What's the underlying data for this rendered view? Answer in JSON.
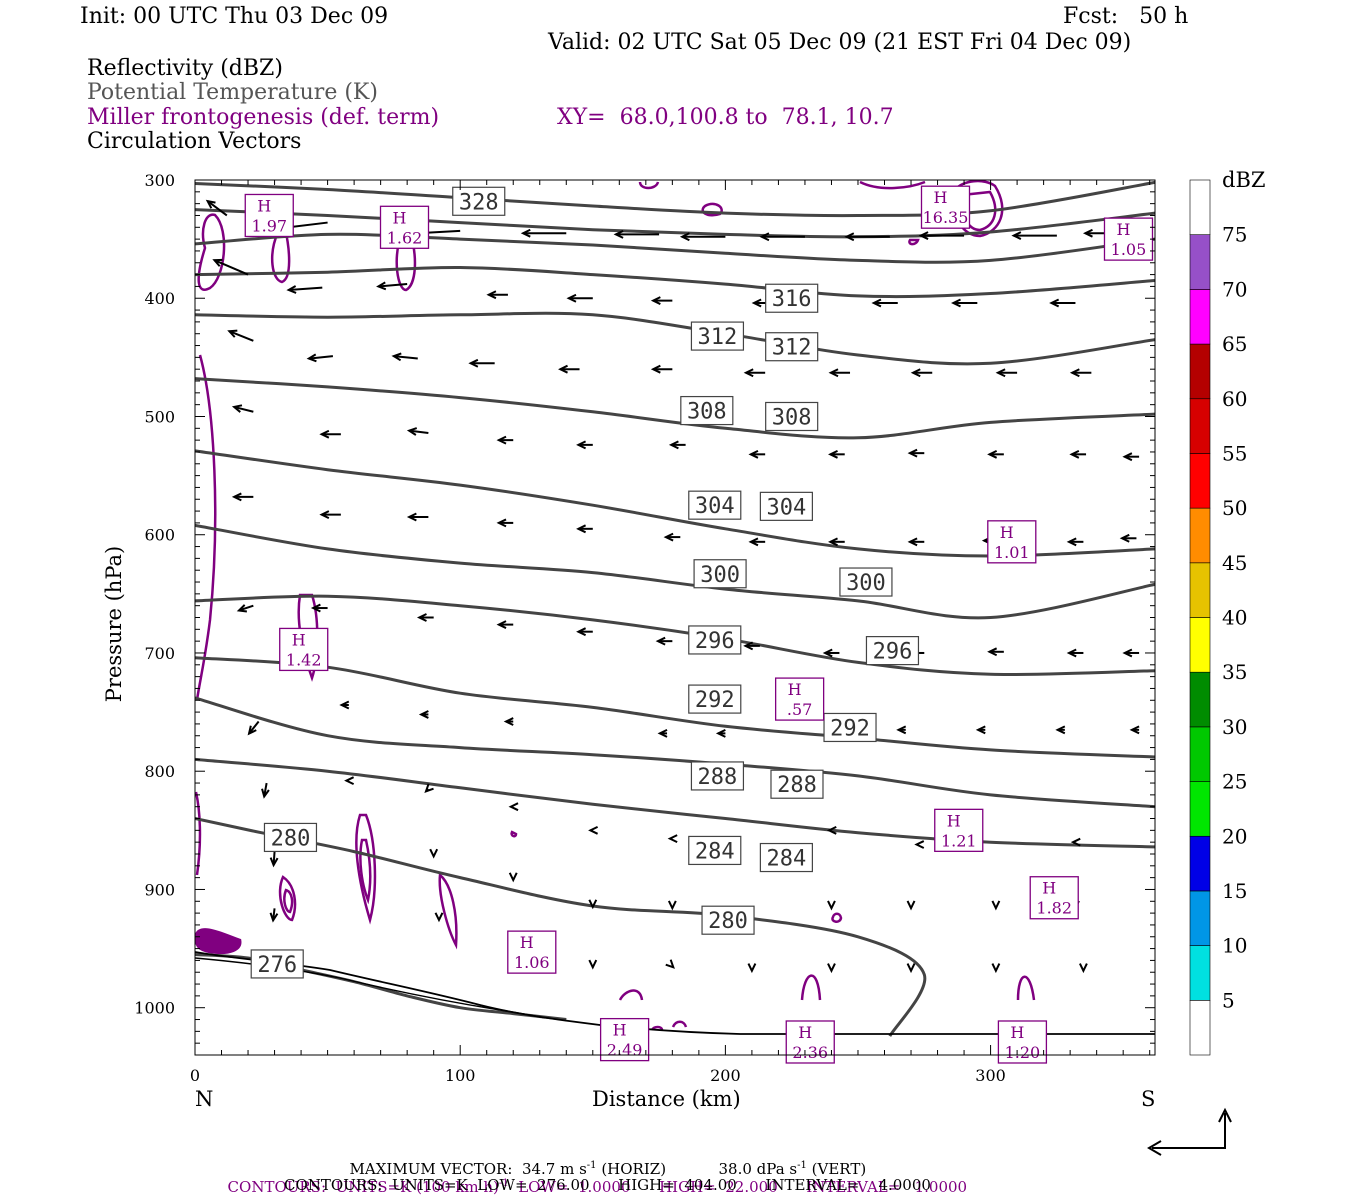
{
  "header": {
    "init": "Init: 00 UTC Thu 03 Dec 09",
    "fcst": "Fcst:   50 h",
    "valid": "Valid: 02 UTC Sat 05 Dec 09 (21 EST Fri 04 Dec 09)",
    "legend_reflectivity": "Reflectivity (dBZ)",
    "legend_theta": "Potential Temperature (K)",
    "legend_frontogenesis": "Miller frontogenesis (def. term)",
    "xy_range": "XY=  68.0,100.8 to  78.1, 10.7",
    "legend_vectors": "Circulation Vectors"
  },
  "colors": {
    "theta": "#444444",
    "frontogenesis": "#800080",
    "vectors": "#000000"
  },
  "colorbar": {
    "title": "dBZ",
    "levels": [
      "5",
      "10",
      "15",
      "20",
      "25",
      "30",
      "35",
      "40",
      "45",
      "50",
      "55",
      "60",
      "65",
      "70",
      "75"
    ],
    "colors": [
      "#ffffff",
      "#00e0e0",
      "#0096e6",
      "#0000e6",
      "#00e600",
      "#00c800",
      "#008c00",
      "#ffff00",
      "#e6c300",
      "#ff8c00",
      "#ff0000",
      "#d70000",
      "#b40000",
      "#ff00ff",
      "#9650c8",
      "#ffffff"
    ]
  },
  "footer": {
    "max_vector_label": "MAXIMUM VECTOR:",
    "max_vector_horiz": "34.7 m s",
    "horiz_tag": "(HORIZ)",
    "max_vector_vert": "38.0 dPa s",
    "vert_tag": "(VERT)",
    "contours_purple": "CONTOURS:  UNITS=K (100 km h)",
    "purple_stats": "LOW=  1.0000      HIGH=  22.000      INTERVAL=   1.0000",
    "contours_black": "CONTOURS:  UNITS=K  LOW=  276.00      HIGH=  404.00      INTERVAL=    4.0000",
    "exp_minus1": "-1"
  },
  "chart_data": {
    "type": "line",
    "xlabel": "Distance (km)",
    "ylabel": "Pressure (hPa)",
    "xlim": [
      0,
      362
    ],
    "ylim": [
      1040,
      300
    ],
    "x_ticks": [
      "0",
      "100",
      "200",
      "300"
    ],
    "x_tick_values": [
      0,
      100,
      200,
      300
    ],
    "y_ticks": [
      "300",
      "400",
      "500",
      "600",
      "700",
      "800",
      "900",
      "1000"
    ],
    "y_tick_values": [
      300,
      400,
      500,
      600,
      700,
      800,
      900,
      1000
    ],
    "left_end_label": "N",
    "right_end_label": "S",
    "theta_contours": [
      {
        "value": 328,
        "label": "328",
        "x": [
          0,
          50,
          100,
          150,
          200,
          250,
          300,
          362
        ],
        "p": [
          303,
          308,
          315,
          322,
          328,
          330,
          326,
          302
        ]
      },
      {
        "value": 324,
        "label": "",
        "x": [
          0,
          50,
          100,
          150,
          200,
          250,
          300,
          362
        ],
        "p": [
          325,
          330,
          336,
          342,
          346,
          348,
          344,
          328
        ]
      },
      {
        "value": 320,
        "label": "",
        "x": [
          0,
          50,
          100,
          150,
          200,
          250,
          300,
          362
        ],
        "p": [
          354,
          346,
          350,
          355,
          362,
          368,
          368,
          350
        ]
      },
      {
        "value": 316,
        "label": "316",
        "x": [
          0,
          50,
          100,
          150,
          200,
          250,
          300,
          362
        ],
        "p": [
          380,
          378,
          374,
          380,
          388,
          398,
          396,
          385
        ]
      },
      {
        "value": 312,
        "label": "312",
        "x": [
          0,
          50,
          100,
          150,
          200,
          250,
          300,
          362
        ],
        "p": [
          414,
          416,
          414,
          414,
          430,
          448,
          455,
          435
        ]
      },
      {
        "value": 308,
        "label": "308",
        "x": [
          0,
          50,
          100,
          150,
          200,
          250,
          300,
          362
        ],
        "p": [
          468,
          475,
          484,
          496,
          510,
          518,
          505,
          498
        ]
      },
      {
        "value": 304,
        "label": "304",
        "x": [
          0,
          50,
          100,
          150,
          200,
          250,
          300,
          362
        ],
        "p": [
          529,
          545,
          558,
          575,
          595,
          612,
          618,
          612
        ]
      },
      {
        "value": 300,
        "label": "300",
        "x": [
          0,
          50,
          100,
          150,
          200,
          250,
          300,
          362
        ],
        "p": [
          592,
          612,
          624,
          632,
          646,
          656,
          670,
          642
        ]
      },
      {
        "value": 296,
        "label": "296",
        "x": [
          0,
          50,
          100,
          150,
          200,
          250,
          300,
          362
        ],
        "p": [
          656,
          652,
          660,
          672,
          688,
          708,
          718,
          715
        ]
      },
      {
        "value": 292,
        "label": "292",
        "x": [
          0,
          50,
          100,
          150,
          200,
          250,
          300,
          362
        ],
        "p": [
          704,
          712,
          734,
          746,
          762,
          772,
          782,
          788
        ]
      },
      {
        "value": 288,
        "label": "288",
        "x": [
          0,
          50,
          100,
          150,
          200,
          250,
          300,
          362
        ],
        "p": [
          738,
          770,
          780,
          786,
          794,
          804,
          820,
          830
        ]
      },
      {
        "value": 284,
        "label": "284",
        "x": [
          0,
          50,
          100,
          150,
          200,
          250,
          300,
          362
        ],
        "p": [
          790,
          800,
          814,
          828,
          840,
          852,
          860,
          864
        ]
      },
      {
        "value": 280,
        "label": "280",
        "x": [
          0,
          25,
          60,
          100,
          150,
          200,
          250,
          275,
          262
        ],
        "p": [
          840,
          852,
          868,
          890,
          914,
          922,
          940,
          972,
          1024
        ]
      },
      {
        "value": 276,
        "label": "276",
        "x": [
          0,
          20,
          40,
          60,
          80,
          100,
          120,
          140
        ],
        "p": [
          955,
          958,
          968,
          978,
          990,
          1000,
          1005,
          1010
        ]
      }
    ],
    "theta_labels": [
      {
        "text": "328",
        "x": 107,
        "p": 318
      },
      {
        "text": "316",
        "x": 225,
        "p": 400
      },
      {
        "text": "312",
        "x": 197,
        "p": 432
      },
      {
        "text": "312",
        "x": 225,
        "p": 441
      },
      {
        "text": "308",
        "x": 193,
        "p": 495
      },
      {
        "text": "308",
        "x": 225,
        "p": 500
      },
      {
        "text": "304",
        "x": 196,
        "p": 575
      },
      {
        "text": "304",
        "x": 223,
        "p": 576
      },
      {
        "text": "300",
        "x": 198,
        "p": 633
      },
      {
        "text": "300",
        "x": 253,
        "p": 640
      },
      {
        "text": "296",
        "x": 196,
        "p": 689
      },
      {
        "text": "296",
        "x": 263,
        "p": 698
      },
      {
        "text": "292",
        "x": 196,
        "p": 739
      },
      {
        "text": "292",
        "x": 247,
        "p": 763
      },
      {
        "text": "288",
        "x": 197,
        "p": 804
      },
      {
        "text": "288",
        "x": 227,
        "p": 811
      },
      {
        "text": "284",
        "x": 196,
        "p": 867
      },
      {
        "text": "284",
        "x": 223,
        "p": 873
      },
      {
        "text": "280",
        "x": 36,
        "p": 856
      },
      {
        "text": "280",
        "x": 201,
        "p": 926
      },
      {
        "text": "276",
        "x": 31,
        "p": 963
      }
    ],
    "h_markers": [
      {
        "value": "1.97",
        "x": 28,
        "p": 330
      },
      {
        "value": "1.62",
        "x": 79,
        "p": 340
      },
      {
        "value": "16.35",
        "x": 283,
        "p": 323
      },
      {
        "value": "1.05",
        "x": 352,
        "p": 350
      },
      {
        "value": "1.01",
        "x": 308,
        "p": 606
      },
      {
        "value": "1.42",
        "x": 41,
        "p": 697
      },
      {
        "value": ".57",
        "x": 228,
        "p": 739
      },
      {
        "value": "1.21",
        "x": 288,
        "p": 850
      },
      {
        "value": "1.82",
        "x": 324,
        "p": 907
      },
      {
        "value": "1.06",
        "x": 127,
        "p": 953
      },
      {
        "value": "2.49",
        "x": 162,
        "p": 1027
      },
      {
        "value": "2.36",
        "x": 232,
        "p": 1029
      },
      {
        "value": "1.20",
        "x": 312,
        "p": 1029
      }
    ],
    "circulation_vectors": [
      {
        "x": 12,
        "p": 330,
        "dx": -0.4,
        "dp": -0.3
      },
      {
        "x": 50,
        "p": 336,
        "dx": -1.0,
        "dp": 0.12
      },
      {
        "x": 100,
        "p": 343,
        "dx": -0.9,
        "dp": 0.05
      },
      {
        "x": 140,
        "p": 345,
        "dx": -0.9,
        "dp": 0.0
      },
      {
        "x": 175,
        "p": 346,
        "dx": -0.9,
        "dp": 0.0
      },
      {
        "x": 200,
        "p": 348,
        "dx": -0.9,
        "dp": 0.0
      },
      {
        "x": 230,
        "p": 348,
        "dx": -0.9,
        "dp": 0.0
      },
      {
        "x": 262,
        "p": 348,
        "dx": -0.9,
        "dp": 0.0
      },
      {
        "x": 290,
        "p": 347,
        "dx": -0.9,
        "dp": 0.0
      },
      {
        "x": 325,
        "p": 347,
        "dx": -0.9,
        "dp": 0.0
      },
      {
        "x": 352,
        "p": 345,
        "dx": -0.9,
        "dp": 0.0
      },
      {
        "x": 20,
        "p": 380,
        "dx": -0.7,
        "dp": -0.3
      },
      {
        "x": 48,
        "p": 391,
        "dx": -0.7,
        "dp": 0.05
      },
      {
        "x": 80,
        "p": 388,
        "dx": -0.6,
        "dp": 0.05
      },
      {
        "x": 118,
        "p": 397,
        "dx": -0.4,
        "dp": 0.0
      },
      {
        "x": 150,
        "p": 400,
        "dx": -0.5,
        "dp": 0.0
      },
      {
        "x": 180,
        "p": 402,
        "dx": -0.4,
        "dp": 0.0
      },
      {
        "x": 218,
        "p": 404,
        "dx": -0.4,
        "dp": 0.0
      },
      {
        "x": 265,
        "p": 404,
        "dx": -0.5,
        "dp": 0.0
      },
      {
        "x": 295,
        "p": 404,
        "dx": -0.5,
        "dp": 0.0
      },
      {
        "x": 332,
        "p": 404,
        "dx": -0.5,
        "dp": 0.0
      },
      {
        "x": 22,
        "p": 436,
        "dx": -0.5,
        "dp": -0.2
      },
      {
        "x": 52,
        "p": 449,
        "dx": -0.5,
        "dp": 0.05
      },
      {
        "x": 84,
        "p": 451,
        "dx": -0.5,
        "dp": -0.05
      },
      {
        "x": 113,
        "p": 455,
        "dx": -0.5,
        "dp": 0.0
      },
      {
        "x": 145,
        "p": 460,
        "dx": -0.4,
        "dp": 0.0
      },
      {
        "x": 180,
        "p": 460,
        "dx": -0.4,
        "dp": 0.0
      },
      {
        "x": 215,
        "p": 463,
        "dx": -0.4,
        "dp": 0.0
      },
      {
        "x": 247,
        "p": 463,
        "dx": -0.4,
        "dp": 0.0
      },
      {
        "x": 278,
        "p": 463,
        "dx": -0.4,
        "dp": 0.0
      },
      {
        "x": 310,
        "p": 463,
        "dx": -0.4,
        "dp": 0.0
      },
      {
        "x": 338,
        "p": 463,
        "dx": -0.4,
        "dp": 0.0
      },
      {
        "x": 22,
        "p": 496,
        "dx": -0.4,
        "dp": -0.1
      },
      {
        "x": 55,
        "p": 515,
        "dx": -0.4,
        "dp": 0.0
      },
      {
        "x": 88,
        "p": 514,
        "dx": -0.4,
        "dp": -0.05
      },
      {
        "x": 120,
        "p": 520,
        "dx": -0.3,
        "dp": 0.0
      },
      {
        "x": 150,
        "p": 524,
        "dx": -0.3,
        "dp": 0.0
      },
      {
        "x": 185,
        "p": 524,
        "dx": -0.3,
        "dp": 0.0
      },
      {
        "x": 215,
        "p": 532,
        "dx": -0.3,
        "dp": 0.0
      },
      {
        "x": 245,
        "p": 532,
        "dx": -0.3,
        "dp": 0.0
      },
      {
        "x": 275,
        "p": 531,
        "dx": -0.3,
        "dp": 0.0
      },
      {
        "x": 305,
        "p": 532,
        "dx": -0.3,
        "dp": 0.0
      },
      {
        "x": 336,
        "p": 532,
        "dx": -0.3,
        "dp": 0.0
      },
      {
        "x": 356,
        "p": 534,
        "dx": -0.3,
        "dp": 0.0
      },
      {
        "x": 22,
        "p": 568,
        "dx": -0.4,
        "dp": 0.0
      },
      {
        "x": 55,
        "p": 583,
        "dx": -0.4,
        "dp": 0.0
      },
      {
        "x": 88,
        "p": 585,
        "dx": -0.4,
        "dp": 0.0
      },
      {
        "x": 120,
        "p": 590,
        "dx": -0.3,
        "dp": 0.0
      },
      {
        "x": 150,
        "p": 595,
        "dx": -0.3,
        "dp": 0.0
      },
      {
        "x": 183,
        "p": 602,
        "dx": -0.3,
        "dp": 0.0
      },
      {
        "x": 215,
        "p": 606,
        "dx": -0.3,
        "dp": 0.0
      },
      {
        "x": 245,
        "p": 606,
        "dx": -0.3,
        "dp": 0.0
      },
      {
        "x": 275,
        "p": 606,
        "dx": -0.3,
        "dp": 0.0
      },
      {
        "x": 303,
        "p": 605,
        "dx": -0.3,
        "dp": 0.0
      },
      {
        "x": 335,
        "p": 606,
        "dx": -0.3,
        "dp": 0.0
      },
      {
        "x": 355,
        "p": 603,
        "dx": -0.3,
        "dp": 0.0
      },
      {
        "x": 22,
        "p": 660,
        "dx": -0.3,
        "dp": 0.1
      },
      {
        "x": 50,
        "p": 662,
        "dx": -0.3,
        "dp": 0.0
      },
      {
        "x": 90,
        "p": 670,
        "dx": -0.3,
        "dp": 0.0
      },
      {
        "x": 120,
        "p": 676,
        "dx": -0.3,
        "dp": 0.0
      },
      {
        "x": 150,
        "p": 682,
        "dx": -0.3,
        "dp": 0.0
      },
      {
        "x": 180,
        "p": 690,
        "dx": -0.3,
        "dp": 0.0
      },
      {
        "x": 213,
        "p": 694,
        "dx": -0.3,
        "dp": 0.0
      },
      {
        "x": 243,
        "p": 700,
        "dx": -0.3,
        "dp": 0.0
      },
      {
        "x": 275,
        "p": 700,
        "dx": -0.3,
        "dp": 0.0
      },
      {
        "x": 305,
        "p": 699,
        "dx": -0.3,
        "dp": 0.0
      },
      {
        "x": 335,
        "p": 700,
        "dx": -0.3,
        "dp": 0.0
      },
      {
        "x": 356,
        "p": 700,
        "dx": -0.3,
        "dp": 0.0
      },
      {
        "x": 24,
        "p": 758,
        "dx": -0.2,
        "dp": 0.25
      },
      {
        "x": 58,
        "p": 744,
        "dx": -0.15,
        "dp": 0.0
      },
      {
        "x": 88,
        "p": 752,
        "dx": -0.15,
        "dp": 0.0
      },
      {
        "x": 120,
        "p": 758,
        "dx": -0.15,
        "dp": 0.0
      },
      {
        "x": 178,
        "p": 768,
        "dx": -0.15,
        "dp": 0.0
      },
      {
        "x": 200,
        "p": 768,
        "dx": -0.15,
        "dp": 0.0
      },
      {
        "x": 268,
        "p": 765,
        "dx": -0.15,
        "dp": 0.0
      },
      {
        "x": 298,
        "p": 765,
        "dx": -0.15,
        "dp": 0.0
      },
      {
        "x": 328,
        "p": 765,
        "dx": -0.15,
        "dp": 0.0
      },
      {
        "x": 356,
        "p": 765,
        "dx": -0.15,
        "dp": 0.0
      },
      {
        "x": 27,
        "p": 810,
        "dx": -0.05,
        "dp": 0.28
      },
      {
        "x": 58,
        "p": 808,
        "dx": -0.05,
        "dp": 0.0
      },
      {
        "x": 88,
        "p": 815,
        "dx": -0.05,
        "dp": 0.05
      },
      {
        "x": 120,
        "p": 830,
        "dx": -0.05,
        "dp": 0.0
      },
      {
        "x": 150,
        "p": 850,
        "dx": -0.05,
        "dp": 0.0
      },
      {
        "x": 180,
        "p": 857,
        "dx": -0.05,
        "dp": 0.0
      },
      {
        "x": 240,
        "p": 850,
        "dx": -0.05,
        "dp": 0.0
      },
      {
        "x": 273,
        "p": 862,
        "dx": -0.05,
        "dp": 0.0
      },
      {
        "x": 332,
        "p": 860,
        "dx": -0.05,
        "dp": 0.0
      },
      {
        "x": 30,
        "p": 868,
        "dx": -0.02,
        "dp": 0.28
      },
      {
        "x": 90,
        "p": 870,
        "dx": 0.0,
        "dp": 0.05
      },
      {
        "x": 120,
        "p": 890,
        "dx": 0.0,
        "dp": 0.05
      },
      {
        "x": 30,
        "p": 916,
        "dx": -0.03,
        "dp": 0.25
      },
      {
        "x": 92,
        "p": 925,
        "dx": 0.0,
        "dp": 0.02
      },
      {
        "x": 150,
        "p": 914,
        "dx": 0.0,
        "dp": 0.02
      },
      {
        "x": 180,
        "p": 915,
        "dx": 0.0,
        "dp": 0.02
      },
      {
        "x": 240,
        "p": 915,
        "dx": 0.0,
        "dp": 0.02
      },
      {
        "x": 270,
        "p": 915,
        "dx": 0.0,
        "dp": 0.02
      },
      {
        "x": 302,
        "p": 915,
        "dx": 0.0,
        "dp": 0.02
      },
      {
        "x": 332,
        "p": 915,
        "dx": 0.0,
        "dp": 0.02
      },
      {
        "x": 180,
        "p": 965,
        "dx": 0.02,
        "dp": 0.02
      },
      {
        "x": 150,
        "p": 965,
        "dx": 0.0,
        "dp": 0.02
      },
      {
        "x": 210,
        "p": 968,
        "dx": 0.0,
        "dp": 0.02
      },
      {
        "x": 240,
        "p": 968,
        "dx": 0.0,
        "dp": 0.02
      },
      {
        "x": 270,
        "p": 968,
        "dx": 0.0,
        "dp": 0.02
      },
      {
        "x": 302,
        "p": 968,
        "dx": 0.0,
        "dp": 0.02
      },
      {
        "x": 335,
        "p": 968,
        "dx": 0.0,
        "dp": 0.02
      }
    ]
  }
}
